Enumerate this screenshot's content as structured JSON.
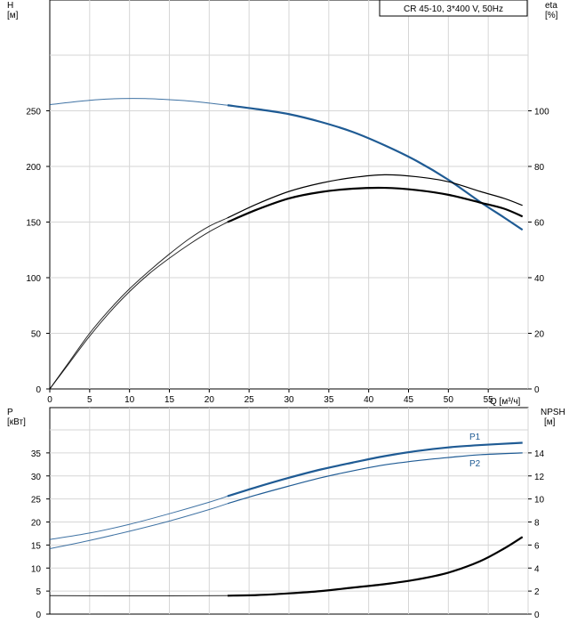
{
  "chart_data": [
    {
      "type": "line",
      "title": "CR 45-10, 3*400 V, 50Hz",
      "xlabel": "Q [м³/ч]",
      "ylabel_left": "H\n[м]",
      "ylabel_right": "eta\n[%]",
      "xlim": [
        0,
        60
      ],
      "ylim_left": [
        0,
        300
      ],
      "ylim_right": [
        0,
        120
      ],
      "x_ticks": [
        0,
        5,
        10,
        15,
        20,
        25,
        30,
        35,
        40,
        45,
        50,
        55
      ],
      "y_ticks_left": [
        0,
        50,
        100,
        150,
        200,
        250
      ],
      "y_ticks_right": [
        0,
        20,
        40,
        60,
        80,
        100
      ],
      "grid": true,
      "series": [
        {
          "axis": "left",
          "color": "#1f5b94",
          "width_thin": 1,
          "width_bold": 2.2,
          "thin": [
            [
              0,
              255.5
            ],
            [
              3,
              258
            ],
            [
              6,
              260
            ],
            [
              9,
              261
            ],
            [
              12,
              261
            ],
            [
              15,
              260
            ],
            [
              18,
              258.5
            ],
            [
              22.3,
              255
            ]
          ],
          "bold": [
            [
              22.3,
              255
            ],
            [
              26,
              251.5
            ],
            [
              30,
              247
            ],
            [
              34,
              240
            ],
            [
              38,
              231
            ],
            [
              42,
              219
            ],
            [
              46,
              205
            ],
            [
              50,
              188
            ],
            [
              54,
              168
            ],
            [
              57,
              154
            ],
            [
              59.3,
              143
            ]
          ]
        },
        {
          "axis": "right",
          "color": "#000000",
          "width_thin": 1,
          "width_bold": 1.2,
          "thin": [
            [
              0,
              0
            ],
            [
              2.5,
              10
            ],
            [
              5,
              20
            ],
            [
              7.5,
              28.5
            ],
            [
              10,
              36
            ],
            [
              12.5,
              42.5
            ],
            [
              15,
              48.5
            ],
            [
              17.5,
              54
            ],
            [
              20,
              58.5
            ],
            [
              22.3,
              61.5
            ]
          ],
          "bold": [
            [
              22.3,
              61.5
            ],
            [
              26,
              66.5
            ],
            [
              30,
              71
            ],
            [
              34,
              74
            ],
            [
              38,
              76
            ],
            [
              42,
              77
            ],
            [
              46,
              76.3
            ],
            [
              50,
              74.5
            ],
            [
              54,
              71
            ],
            [
              57,
              68.5
            ],
            [
              59.3,
              66
            ]
          ]
        },
        {
          "axis": "right",
          "color": "#000000",
          "width_thin": 1,
          "width_bold": 2.2,
          "thin": [
            [
              0,
              0
            ],
            [
              2.5,
              9.5
            ],
            [
              5,
              19
            ],
            [
              7.5,
              27.5
            ],
            [
              10,
              35
            ],
            [
              12.5,
              41.5
            ],
            [
              15,
              47
            ],
            [
              17.5,
              52
            ],
            [
              20,
              56.5
            ],
            [
              22.3,
              60
            ]
          ],
          "bold": [
            [
              22.3,
              60
            ],
            [
              26,
              64.5
            ],
            [
              30,
              68.5
            ],
            [
              34,
              70.8
            ],
            [
              38,
              72
            ],
            [
              42,
              72.3
            ],
            [
              46,
              71.5
            ],
            [
              50,
              69.8
            ],
            [
              54,
              67
            ],
            [
              57,
              64.8
            ],
            [
              59.3,
              62
            ]
          ]
        }
      ]
    },
    {
      "type": "line",
      "xlim": [
        0,
        60
      ],
      "ylabel_left": "P\n[кВт]",
      "ylabel_right": "NPSH\n[м]",
      "ylim_left": [
        0,
        40
      ],
      "ylim_right": [
        0,
        16
      ],
      "y_ticks_left": [
        0,
        5,
        10,
        15,
        20,
        25,
        30,
        35
      ],
      "y_ticks_right": [
        0,
        2,
        4,
        6,
        8,
        10,
        12,
        14
      ],
      "grid": true,
      "series": [
        {
          "name": "P1",
          "axis": "left",
          "color": "#1f5b94",
          "width_thin": 1,
          "width_bold": 2.2,
          "thin": [
            [
              0,
              16.2
            ],
            [
              5,
              17.6
            ],
            [
              10,
              19.5
            ],
            [
              15,
              21.8
            ],
            [
              20,
              24.3
            ],
            [
              22.3,
              25.6
            ]
          ],
          "bold": [
            [
              22.3,
              25.6
            ],
            [
              26,
              27.6
            ],
            [
              30,
              29.6
            ],
            [
              34,
              31.4
            ],
            [
              38,
              32.9
            ],
            [
              42,
              34.3
            ],
            [
              46,
              35.4
            ],
            [
              50,
              36.2
            ],
            [
              54,
              36.7
            ],
            [
              59.3,
              37.2
            ]
          ]
        },
        {
          "name": "P2",
          "axis": "left",
          "color": "#1f5b94",
          "width_thin": 1,
          "width_bold": 1.2,
          "thin": [
            [
              0,
              14.2
            ],
            [
              5,
              16
            ],
            [
              10,
              18
            ],
            [
              15,
              20.2
            ],
            [
              20,
              22.7
            ],
            [
              22.3,
              24
            ]
          ],
          "bold": [
            [
              22.3,
              24
            ],
            [
              26,
              25.9
            ],
            [
              30,
              27.8
            ],
            [
              34,
              29.6
            ],
            [
              38,
              31.1
            ],
            [
              42,
              32.4
            ],
            [
              46,
              33.3
            ],
            [
              50,
              34
            ],
            [
              54,
              34.6
            ],
            [
              59.3,
              35
            ]
          ]
        },
        {
          "axis": "right",
          "color": "#000000",
          "width_thin": 1,
          "width_bold": 2.2,
          "thin": [
            [
              0,
              1.6
            ],
            [
              10,
              1.58
            ],
            [
              22.3,
              1.6
            ]
          ],
          "bold": [
            [
              22.3,
              1.6
            ],
            [
              26,
              1.65
            ],
            [
              30,
              1.8
            ],
            [
              34,
              2
            ],
            [
              38,
              2.3
            ],
            [
              42,
              2.6
            ],
            [
              46,
              3
            ],
            [
              50,
              3.6
            ],
            [
              54,
              4.6
            ],
            [
              57,
              5.7
            ],
            [
              59.3,
              6.7
            ]
          ]
        }
      ]
    }
  ]
}
